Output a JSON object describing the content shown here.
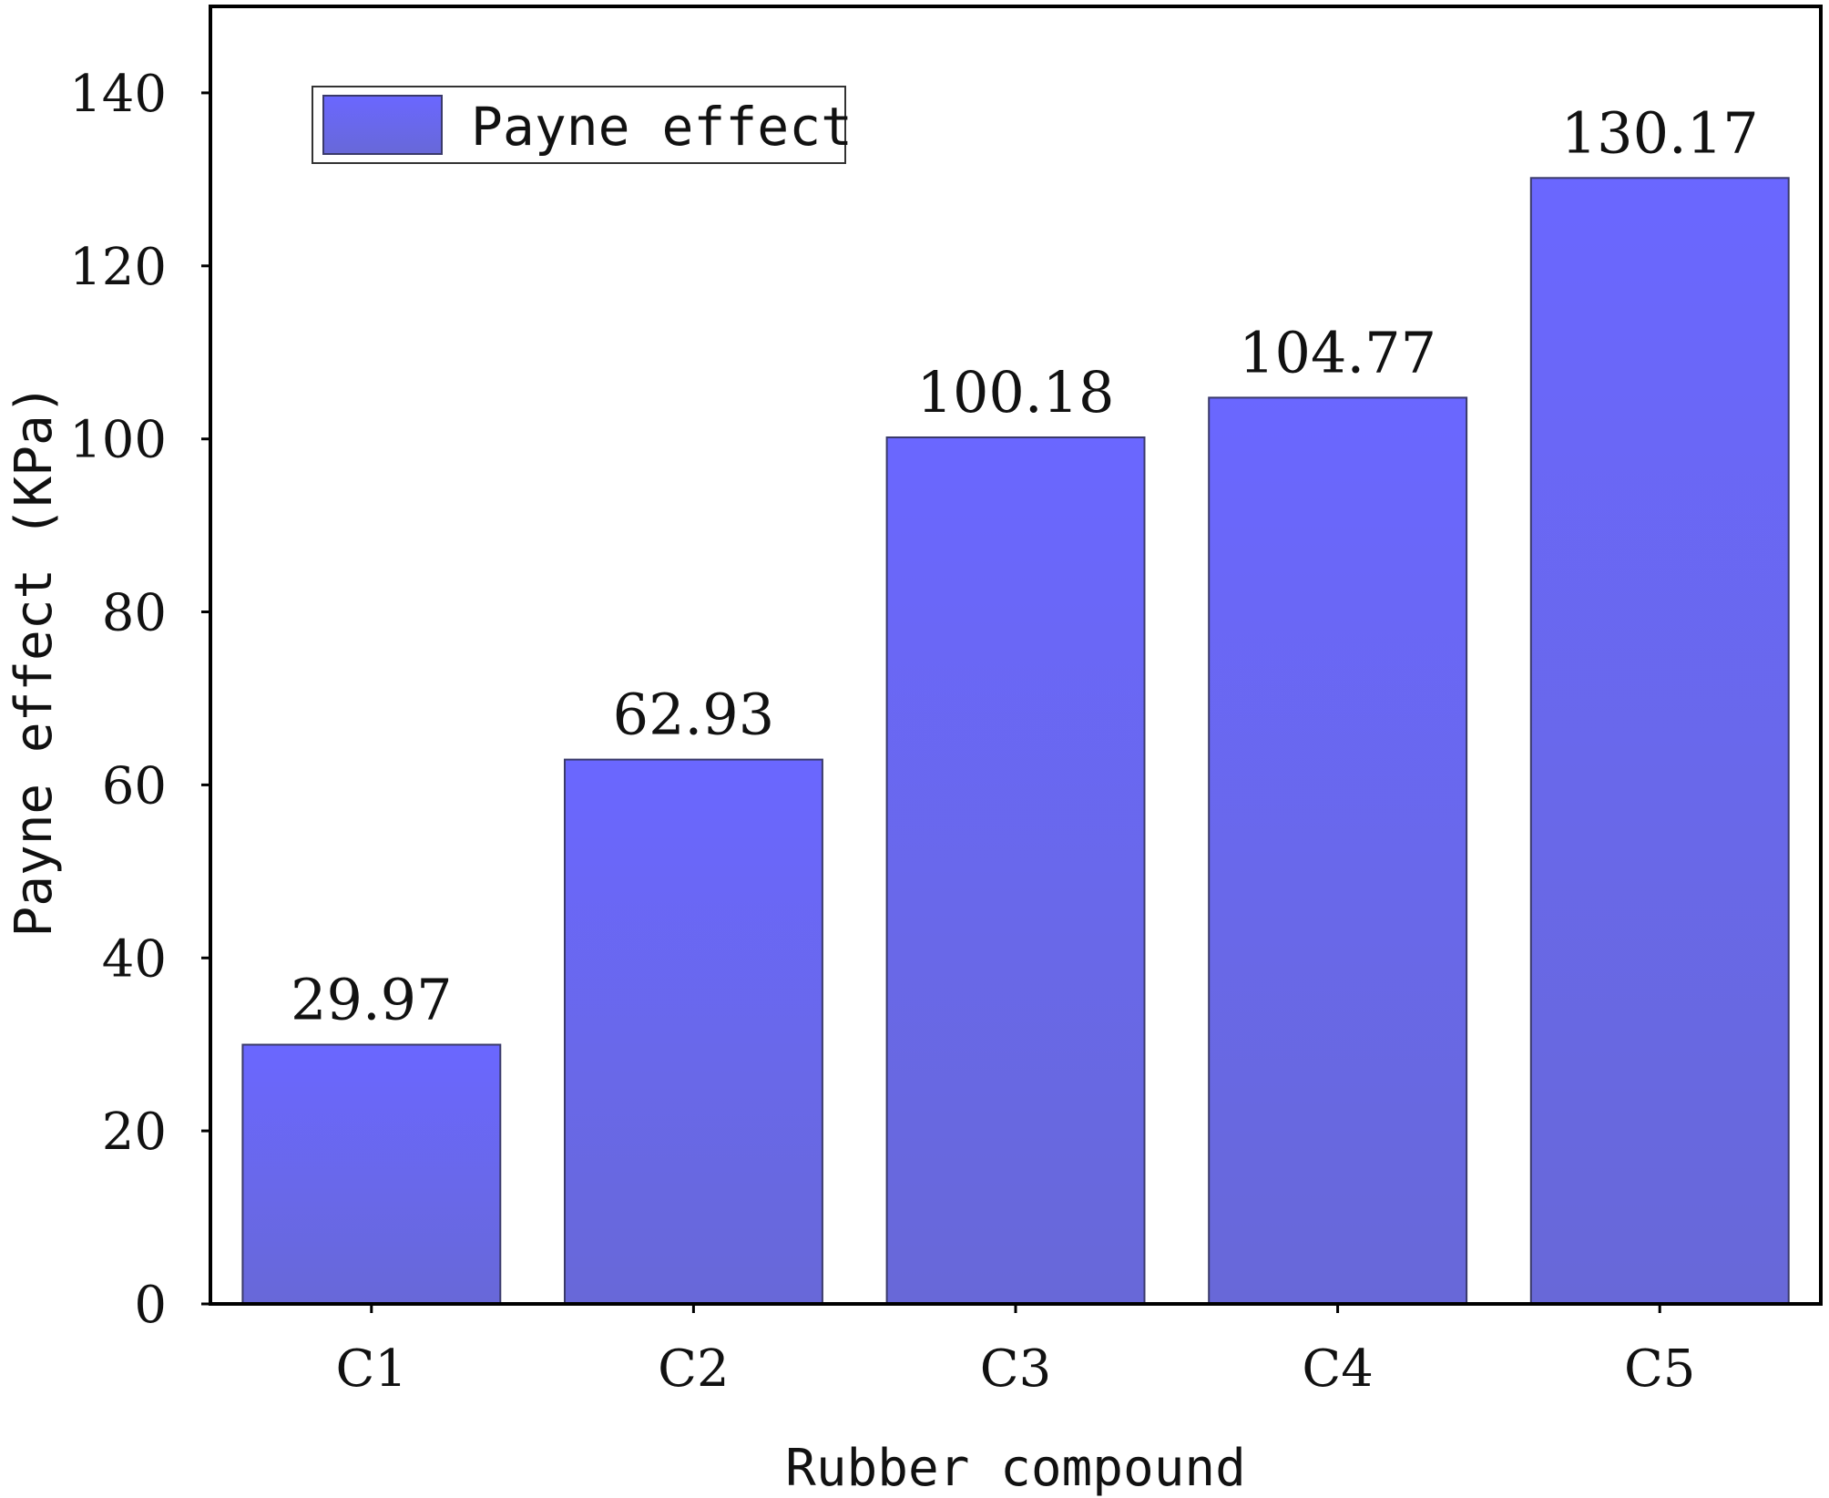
{
  "chart_data": {
    "type": "bar",
    "categories": [
      "C1",
      "C2",
      "C3",
      "C4",
      "C5"
    ],
    "series": [
      {
        "name": "Payne effect",
        "values": [
          29.97,
          62.93,
          100.18,
          104.77,
          130.17
        ],
        "labels": [
          "29.97",
          "62.93",
          "100.18",
          "104.77",
          "130.17"
        ]
      }
    ],
    "xlabel": "Rubber compound",
    "ylabel": "Payne effect (KPa)",
    "ylim": [
      0,
      150
    ],
    "yticks": [
      "0",
      "20",
      "40",
      "60",
      "80",
      "100",
      "120",
      "140"
    ],
    "grid": false,
    "legend": "top-left",
    "bar_color_top": "#6a67ff",
    "bar_color_bottom": "#6868d8",
    "bar_edge_color": "#3a3a6a"
  }
}
